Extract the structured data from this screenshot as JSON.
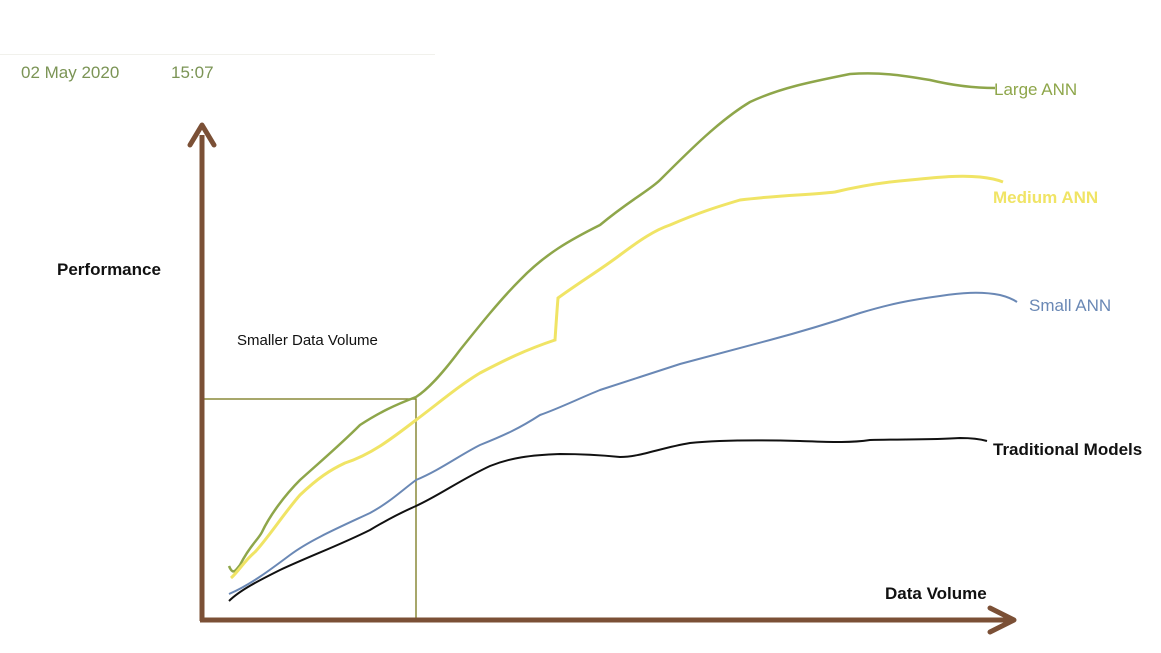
{
  "header": {
    "date": "02 May 2020",
    "time": "15:07"
  },
  "diagram": {
    "y_axis_label": "Performance",
    "x_axis_label": "Data Volume",
    "region_label": "Smaller Data Volume"
  },
  "series": [
    {
      "name": "Large ANN",
      "color": "#8ea64a"
    },
    {
      "name": "Medium ANN",
      "color": "#f0e465"
    },
    {
      "name": "Small ANN",
      "color": "#6a88b5"
    },
    {
      "name": "Traditional Models",
      "color": "#111111"
    }
  ],
  "colors": {
    "axes": "#7b5036",
    "region_box": "#8a8a3a",
    "header_text": "#7b9455"
  }
}
